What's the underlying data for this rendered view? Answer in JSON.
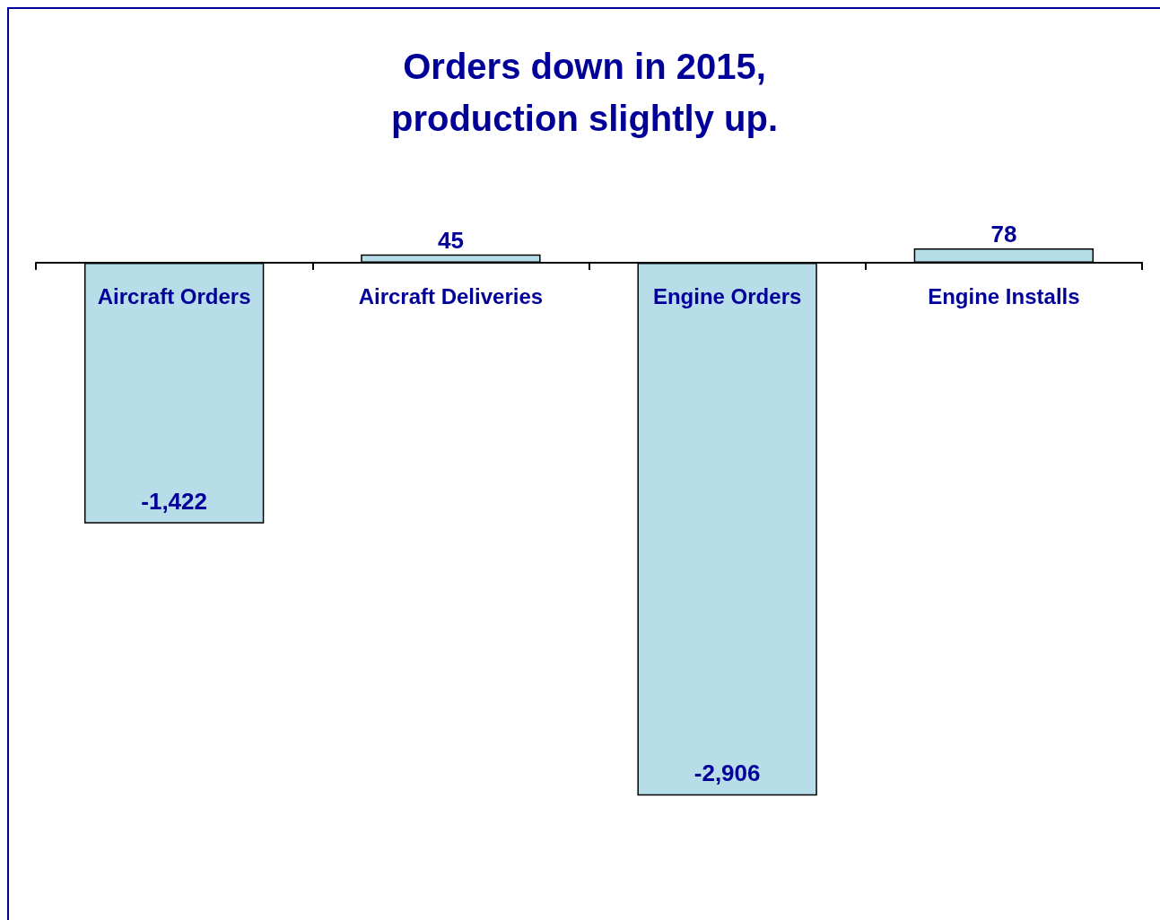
{
  "chart_data": {
    "type": "bar",
    "title": "Orders down in 2015,\nproduction slightly up.",
    "categories": [
      "Aircraft Orders",
      "Aircraft Deliveries",
      "Engine Orders",
      "Engine Installs"
    ],
    "values": [
      -1422,
      45,
      -2906,
      78
    ],
    "value_labels": [
      "-1,422",
      "45",
      "-2,906",
      "78"
    ],
    "color": "#b7dde8"
  }
}
